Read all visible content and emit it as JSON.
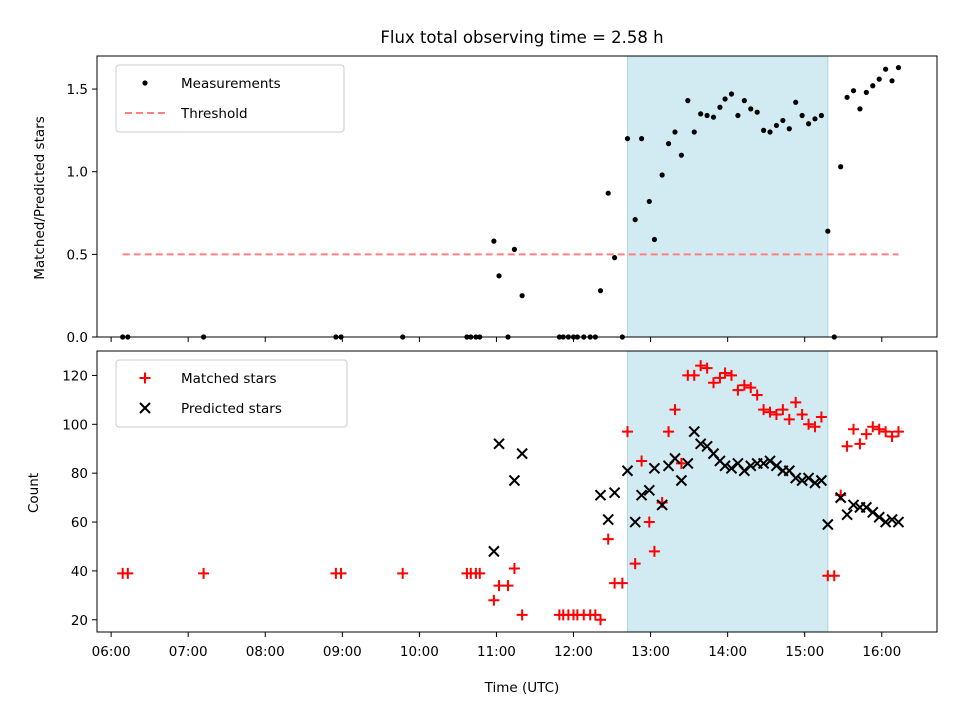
{
  "figure": {
    "title": "Flux total observing time = 2.58 h",
    "xlabel": "Time (UTC)"
  },
  "chart_data": [
    {
      "type": "scatter",
      "ylabel": "Matched/Predicted stars",
      "xlim": [
        "05:49",
        "16:43"
      ],
      "ylim": [
        0,
        1.7
      ],
      "yticks": [
        "0.0",
        "0.5",
        "1.0",
        "1.5"
      ],
      "xticks": [
        "06:00",
        "07:00",
        "08:00",
        "09:00",
        "10:00",
        "11:00",
        "12:00",
        "13:00",
        "14:00",
        "15:00",
        "16:00"
      ],
      "highlight_span": {
        "start": "12:42",
        "end": "15:18",
        "color": "#add8e6"
      },
      "legend": {
        "placement": "upper left",
        "entries": [
          "Measurements",
          "Threshold"
        ]
      },
      "series": [
        {
          "name": "Measurements",
          "marker": "dot",
          "color": "#000000",
          "points": [
            [
              "06:09",
              0
            ],
            [
              "06:13",
              0
            ],
            [
              "07:12",
              0
            ],
            [
              "08:55",
              0
            ],
            [
              "08:59",
              0
            ],
            [
              "09:47",
              0
            ],
            [
              "10:37",
              0
            ],
            [
              "10:40",
              0
            ],
            [
              "10:44",
              0
            ],
            [
              "10:47",
              0
            ],
            [
              "10:58",
              0.58
            ],
            [
              "11:02",
              0.37
            ],
            [
              "11:09",
              0
            ],
            [
              "11:14",
              0.53
            ],
            [
              "11:20",
              0.25
            ],
            [
              "11:49",
              0
            ],
            [
              "11:52",
              0
            ],
            [
              "11:56",
              0
            ],
            [
              "12:00",
              0
            ],
            [
              "12:03",
              0
            ],
            [
              "12:08",
              0
            ],
            [
              "12:13",
              0
            ],
            [
              "12:17",
              0
            ],
            [
              "12:21",
              0.28
            ],
            [
              "12:27",
              0.87
            ],
            [
              "12:32",
              0.48
            ],
            [
              "12:38",
              0
            ],
            [
              "12:42",
              1.2
            ],
            [
              "12:48",
              0.71
            ],
            [
              "12:53",
              1.2
            ],
            [
              "12:59",
              0.82
            ],
            [
              "13:03",
              0.59
            ],
            [
              "13:09",
              0.98
            ],
            [
              "13:14",
              1.17
            ],
            [
              "13:19",
              1.24
            ],
            [
              "13:24",
              1.1
            ],
            [
              "13:29",
              1.43
            ],
            [
              "13:34",
              1.24
            ],
            [
              "13:39",
              1.35
            ],
            [
              "13:44",
              1.34
            ],
            [
              "13:49",
              1.33
            ],
            [
              "13:54",
              1.39
            ],
            [
              "13:58",
              1.44
            ],
            [
              "14:03",
              1.47
            ],
            [
              "14:08",
              1.34
            ],
            [
              "14:13",
              1.43
            ],
            [
              "14:18",
              1.38
            ],
            [
              "14:23",
              1.36
            ],
            [
              "14:28",
              1.25
            ],
            [
              "14:33",
              1.24
            ],
            [
              "14:38",
              1.28
            ],
            [
              "14:43",
              1.31
            ],
            [
              "14:48",
              1.26
            ],
            [
              "14:53",
              1.42
            ],
            [
              "14:58",
              1.34
            ],
            [
              "15:03",
              1.29
            ],
            [
              "15:08",
              1.32
            ],
            [
              "15:13",
              1.34
            ],
            [
              "15:18",
              0.64
            ],
            [
              "15:23",
              0
            ],
            [
              "15:28",
              1.03
            ],
            [
              "15:33",
              1.45
            ],
            [
              "15:38",
              1.49
            ],
            [
              "15:43",
              1.38
            ],
            [
              "15:48",
              1.48
            ],
            [
              "15:53",
              1.52
            ],
            [
              "15:58",
              1.56
            ],
            [
              "16:03",
              1.62
            ],
            [
              "16:08",
              1.55
            ],
            [
              "16:13",
              1.63
            ]
          ]
        },
        {
          "name": "Threshold",
          "style": "dashed-line",
          "color": "#ff7f7f",
          "points": [
            [
              "06:09",
              0.5
            ],
            [
              "16:13",
              0.5
            ]
          ]
        }
      ]
    },
    {
      "type": "scatter",
      "ylabel": "Count",
      "xlim": [
        "05:49",
        "16:43"
      ],
      "ylim": [
        15,
        130
      ],
      "yticks": [
        "20",
        "40",
        "60",
        "80",
        "100",
        "120"
      ],
      "xticks": [
        "06:00",
        "07:00",
        "08:00",
        "09:00",
        "10:00",
        "11:00",
        "12:00",
        "13:00",
        "14:00",
        "15:00",
        "16:00"
      ],
      "highlight_span": {
        "start": "12:42",
        "end": "15:18",
        "color": "#add8e6"
      },
      "legend": {
        "placement": "upper left",
        "entries": [
          "Matched stars",
          "Predicted stars"
        ]
      },
      "series": [
        {
          "name": "Matched stars",
          "marker": "plus",
          "color": "#ff0000",
          "points": [
            [
              "06:09",
              39
            ],
            [
              "06:13",
              39
            ],
            [
              "07:12",
              39
            ],
            [
              "08:55",
              39
            ],
            [
              "08:59",
              39
            ],
            [
              "09:47",
              39
            ],
            [
              "10:37",
              39
            ],
            [
              "10:40",
              39
            ],
            [
              "10:44",
              39
            ],
            [
              "10:47",
              39
            ],
            [
              "10:58",
              28
            ],
            [
              "11:02",
              34
            ],
            [
              "11:09",
              34
            ],
            [
              "11:14",
              41
            ],
            [
              "11:20",
              22
            ],
            [
              "11:49",
              22
            ],
            [
              "11:52",
              22
            ],
            [
              "11:56",
              22
            ],
            [
              "12:00",
              22
            ],
            [
              "12:03",
              22
            ],
            [
              "12:08",
              22
            ],
            [
              "12:13",
              22
            ],
            [
              "12:17",
              22
            ],
            [
              "12:21",
              20
            ],
            [
              "12:27",
              53
            ],
            [
              "12:32",
              35
            ],
            [
              "12:38",
              35
            ],
            [
              "12:42",
              97
            ],
            [
              "12:48",
              43
            ],
            [
              "12:53",
              85
            ],
            [
              "12:59",
              60
            ],
            [
              "13:03",
              48
            ],
            [
              "13:09",
              68
            ],
            [
              "13:14",
              97
            ],
            [
              "13:19",
              106
            ],
            [
              "13:24",
              84
            ],
            [
              "13:29",
              120
            ],
            [
              "13:34",
              120
            ],
            [
              "13:39",
              124
            ],
            [
              "13:44",
              123
            ],
            [
              "13:49",
              117
            ],
            [
              "13:54",
              119
            ],
            [
              "13:58",
              121
            ],
            [
              "14:03",
              120
            ],
            [
              "14:08",
              114
            ],
            [
              "14:13",
              116
            ],
            [
              "14:18",
              115
            ],
            [
              "14:23",
              112
            ],
            [
              "14:28",
              106
            ],
            [
              "14:33",
              105
            ],
            [
              "14:38",
              104
            ],
            [
              "14:43",
              106
            ],
            [
              "14:48",
              102
            ],
            [
              "14:53",
              109
            ],
            [
              "14:58",
              104
            ],
            [
              "15:03",
              100
            ],
            [
              "15:08",
              99
            ],
            [
              "15:13",
              103
            ],
            [
              "15:18",
              38
            ],
            [
              "15:23",
              38
            ],
            [
              "15:28",
              71
            ],
            [
              "15:33",
              91
            ],
            [
              "15:38",
              98
            ],
            [
              "15:43",
              92
            ],
            [
              "15:48",
              96
            ],
            [
              "15:53",
              99
            ],
            [
              "15:58",
              98
            ],
            [
              "16:03",
              97
            ],
            [
              "16:08",
              95
            ],
            [
              "16:13",
              97
            ]
          ]
        },
        {
          "name": "Predicted stars",
          "marker": "x",
          "color": "#000000",
          "points": [
            [
              "10:58",
              48
            ],
            [
              "11:02",
              92
            ],
            [
              "11:14",
              77
            ],
            [
              "11:20",
              88
            ],
            [
              "12:21",
              71
            ],
            [
              "12:27",
              61
            ],
            [
              "12:32",
              72
            ],
            [
              "12:42",
              81
            ],
            [
              "12:48",
              60
            ],
            [
              "12:53",
              71
            ],
            [
              "12:59",
              73
            ],
            [
              "13:03",
              82
            ],
            [
              "13:09",
              67
            ],
            [
              "13:14",
              83
            ],
            [
              "13:19",
              86
            ],
            [
              "13:24",
              77
            ],
            [
              "13:29",
              84
            ],
            [
              "13:34",
              97
            ],
            [
              "13:39",
              92
            ],
            [
              "13:44",
              91
            ],
            [
              "13:49",
              88
            ],
            [
              "13:54",
              85
            ],
            [
              "13:58",
              83
            ],
            [
              "14:03",
              82
            ],
            [
              "14:08",
              84
            ],
            [
              "14:13",
              81
            ],
            [
              "14:18",
              83
            ],
            [
              "14:23",
              84
            ],
            [
              "14:28",
              84
            ],
            [
              "14:33",
              85
            ],
            [
              "14:38",
              83
            ],
            [
              "14:43",
              81
            ],
            [
              "14:48",
              81
            ],
            [
              "14:53",
              78
            ],
            [
              "14:58",
              77
            ],
            [
              "15:03",
              78
            ],
            [
              "15:08",
              76
            ],
            [
              "15:13",
              77
            ],
            [
              "15:18",
              59
            ],
            [
              "15:28",
              70
            ],
            [
              "15:33",
              63
            ],
            [
              "15:38",
              67
            ],
            [
              "15:43",
              66
            ],
            [
              "15:48",
              66
            ],
            [
              "15:53",
              64
            ],
            [
              "15:58",
              62
            ],
            [
              "16:03",
              60
            ],
            [
              "16:08",
              61
            ],
            [
              "16:13",
              60
            ]
          ]
        }
      ]
    }
  ]
}
